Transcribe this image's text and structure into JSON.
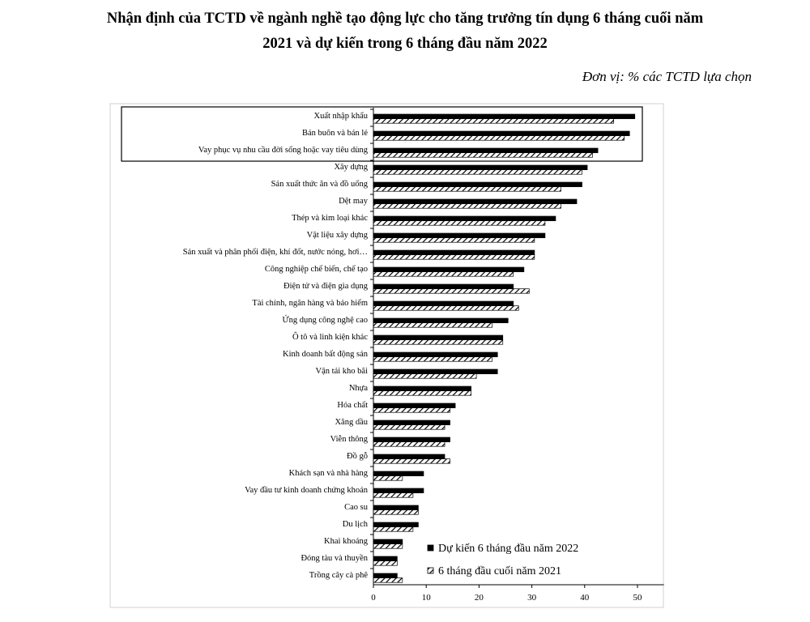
{
  "title_line1": "Nhận định của TCTD về ngành nghề tạo động lực cho tăng trưởng tín dụng 6 tháng cuối năm",
  "title_line2": "2021 và dự kiến trong 6 tháng đầu năm 2022",
  "unit_label": "Đơn vị: % các TCTD lựa chọn",
  "chart_data": {
    "type": "bar",
    "orientation": "horizontal",
    "categories": [
      "Xuất nhập khẩu",
      "Bán buôn và bán lẻ",
      "Vay phục vụ nhu cầu đời sống hoặc vay tiêu dùng",
      "Xây dựng",
      "Sản xuất thức ăn và đồ uống",
      "Dệt may",
      "Thép và kim loại khác",
      "Vật liệu xây dựng",
      "Sản xuất và phân phối điện, khí đốt, nước nóng, hơi…",
      "Công nghiệp chế biến, chế tạo",
      "Điện tử và điện gia dụng",
      "Tài chính, ngân hàng và bảo hiểm",
      "Ứng dụng công nghệ cao",
      "Ô tô và linh kiện khác",
      "Kinh doanh bất động sản",
      "Vận tải kho bãi",
      "Nhựa",
      "Hóa chất",
      "Xăng dầu",
      "Viễn thông",
      "Đồ gỗ",
      "Khách sạn và nhà hàng",
      "Vay đầu tư kinh doanh chứng khoán",
      "Cao su",
      "Du lịch",
      "Khai khoáng",
      "Đóng tàu và thuyền",
      "Trồng cây cà phê"
    ],
    "series": [
      {
        "name": "Dự kiến 6 tháng đầu năm 2022",
        "fill": "solid",
        "color": "#000000",
        "values": [
          49.5,
          48.5,
          42.5,
          40.5,
          39.5,
          38.5,
          34.5,
          32.5,
          30.5,
          28.5,
          26.5,
          26.5,
          25.5,
          24.5,
          23.5,
          23.5,
          18.5,
          15.5,
          14.5,
          14.5,
          13.5,
          9.5,
          9.5,
          8.5,
          8.5,
          5.5,
          4.5,
          4.5
        ]
      },
      {
        "name": "6 tháng đầu cuối năm 2021",
        "fill": "hatched",
        "color": "#000000",
        "values": [
          45.5,
          47.5,
          41.5,
          39.5,
          35.5,
          35.5,
          32.5,
          30.5,
          30.5,
          26.5,
          29.5,
          27.5,
          22.5,
          24.5,
          22.5,
          19.5,
          18.5,
          14.5,
          13.5,
          13.5,
          14.5,
          5.5,
          7.5,
          8.5,
          7.5,
          5.5,
          4.5,
          5.5
        ]
      }
    ],
    "xticks": [
      0,
      10,
      20,
      30,
      40,
      50
    ],
    "xlim": [
      0,
      55
    ],
    "highlight_box_categories": [
      "Xuất nhập khẩu",
      "Bán buôn và bán lẻ",
      "Vay phục vụ nhu cầu đời sống hoặc vay tiêu dùng"
    ],
    "grid": false,
    "legend_position": "bottom-right"
  }
}
